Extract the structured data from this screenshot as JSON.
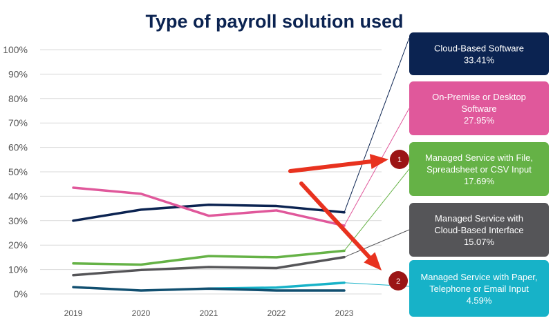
{
  "chart_data": {
    "type": "line",
    "title": "Type of payroll solution used",
    "xlabel": "",
    "ylabel": "",
    "x": [
      "2019",
      "2020",
      "2021",
      "2022",
      "2023"
    ],
    "ylim": [
      0,
      100
    ],
    "y_ticks": [
      "0%",
      "10%",
      "20%",
      "30%",
      "40%",
      "50%",
      "60%",
      "70%",
      "80%",
      "90%",
      "100%"
    ],
    "grid": true,
    "series": [
      {
        "name": "Cloud-Based Software",
        "value_label": "33.41%",
        "color": "#0b2351",
        "values": [
          30.0,
          34.5,
          36.5,
          36.0,
          33.41
        ]
      },
      {
        "name": "On-Premise or Desktop Software",
        "value_label": "27.95%",
        "color": "#e0589b",
        "values": [
          43.5,
          41.0,
          32.0,
          34.2,
          27.95
        ]
      },
      {
        "name": "Managed Service with File, Spreadsheet or CSV Input",
        "value_label": "17.69%",
        "color": "#65b246",
        "values": [
          12.5,
          12.0,
          15.5,
          15.0,
          17.69
        ]
      },
      {
        "name": "Managed Service with Cloud-Based Interface",
        "value_label": "15.07%",
        "color": "#555558",
        "values": [
          7.7,
          9.8,
          11.0,
          10.6,
          15.07
        ]
      },
      {
        "name": "Managed Service with Paper, Telephone or Email Input",
        "value_label": "4.59%",
        "color": "#17b2c8",
        "values": [
          null,
          null,
          2.2,
          2.6,
          4.59
        ]
      },
      {
        "name": "",
        "value_label": "",
        "color": "#114f70",
        "values": [
          2.8,
          1.4,
          2.2,
          1.4,
          1.4
        ]
      }
    ],
    "callouts": [
      {
        "series": 0,
        "lines": [
          "Cloud-Based Software",
          "33.41%"
        ],
        "bg": "#0b2351",
        "fg": "#ffffff"
      },
      {
        "series": 1,
        "lines": [
          "On-Premise or Desktop",
          "Software",
          "27.95%"
        ],
        "bg": "#e0589b",
        "fg": "#ffffff"
      },
      {
        "series": 2,
        "lines": [
          "Managed Service with File,",
          "Spreadsheet or CSV Input",
          "17.69%"
        ],
        "bg": "#65b246",
        "fg": "#ffffff"
      },
      {
        "series": 3,
        "lines": [
          "Managed Service with",
          "Cloud-Based Interface",
          "15.07%"
        ],
        "bg": "#555558",
        "fg": "#ffffff"
      },
      {
        "series": 4,
        "lines": [
          "Managed Service with Paper,",
          "Telephone or Email Input",
          "4.59%"
        ],
        "bg": "#17b2c8",
        "fg": "#ffffff"
      }
    ],
    "annotations": [
      {
        "number": "1",
        "target_callout": 2,
        "color": "#e8321f",
        "marker_color": "#9b1515"
      },
      {
        "number": "2",
        "target_callout": 4,
        "color": "#e8321f",
        "marker_color": "#9b1515"
      }
    ]
  }
}
